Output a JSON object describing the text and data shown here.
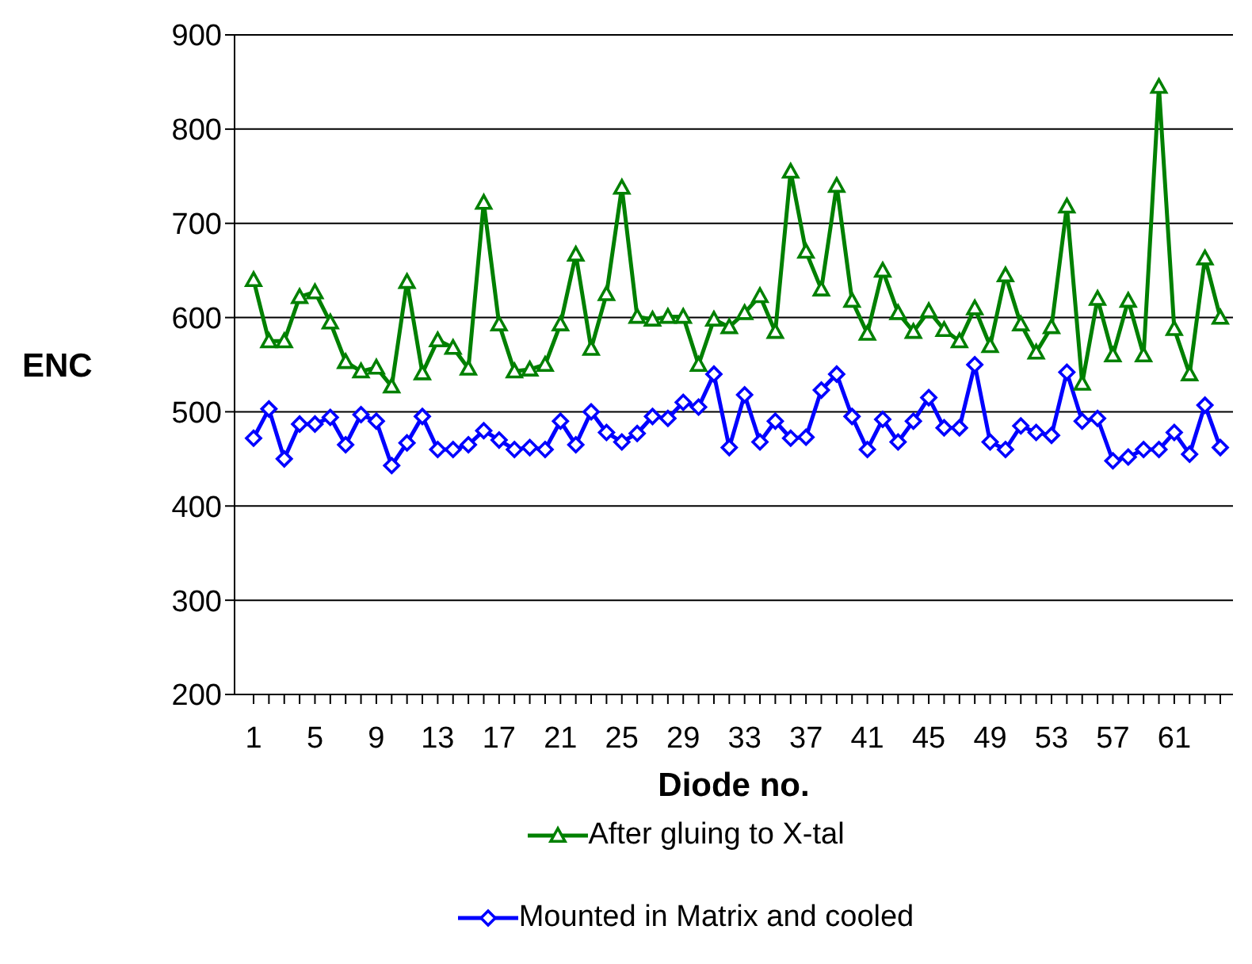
{
  "chart_data": {
    "type": "line",
    "xlabel": "Diode no.",
    "ylabel": "ENC",
    "categories": [
      "1",
      null,
      null,
      null,
      "5",
      null,
      null,
      null,
      "9",
      null,
      null,
      null,
      "13",
      null,
      null,
      null,
      "17",
      null,
      null,
      null,
      "21",
      null,
      null,
      null,
      "25",
      null,
      null,
      null,
      "29",
      null,
      null,
      null,
      "33",
      null,
      null,
      null,
      "37",
      null,
      null,
      null,
      "41",
      null,
      null,
      null,
      "45",
      null,
      null,
      null,
      "49",
      null,
      null,
      null,
      "53",
      null,
      null,
      null,
      "57",
      null,
      null,
      null,
      "61",
      null,
      null,
      null
    ],
    "series": [
      {
        "name": "After gluing to X-tal",
        "color": "#008000",
        "marker": "triangle",
        "values": [
          640,
          575,
          575,
          622,
          627,
          595,
          553,
          543,
          547,
          527,
          638,
          541,
          576,
          568,
          546,
          722,
          593,
          543,
          545,
          550,
          593,
          667,
          567,
          625,
          738,
          601,
          598,
          601,
          601,
          550,
          598,
          590,
          605,
          623,
          585,
          755,
          670,
          630,
          740,
          618,
          583,
          650,
          605,
          585,
          607,
          587,
          575,
          610,
          570,
          645,
          593,
          563,
          590,
          718,
          530,
          620,
          560,
          618,
          560,
          845,
          588,
          540,
          663,
          600
        ]
      },
      {
        "name": "Mounted in Matrix and cooled",
        "color": "#0000ff",
        "marker": "diamond",
        "values": [
          472,
          503,
          450,
          487,
          487,
          494,
          465,
          497,
          490,
          443,
          467,
          495,
          460,
          460,
          465,
          480,
          470,
          460,
          462,
          460,
          490,
          465,
          500,
          478,
          468,
          477,
          495,
          493,
          510,
          505,
          540,
          462,
          518,
          468,
          490,
          472,
          473,
          523,
          540,
          495,
          460,
          492,
          468,
          490,
          515,
          483,
          483,
          550,
          468,
          460,
          485,
          478,
          475,
          542,
          490,
          493,
          448,
          452,
          460,
          460,
          478,
          455,
          507,
          462
        ]
      }
    ],
    "ylim": [
      200,
      900
    ],
    "yticks": [
      200,
      300,
      400,
      500,
      600,
      700,
      800,
      900
    ],
    "grid": "y",
    "legend": "bottom"
  }
}
